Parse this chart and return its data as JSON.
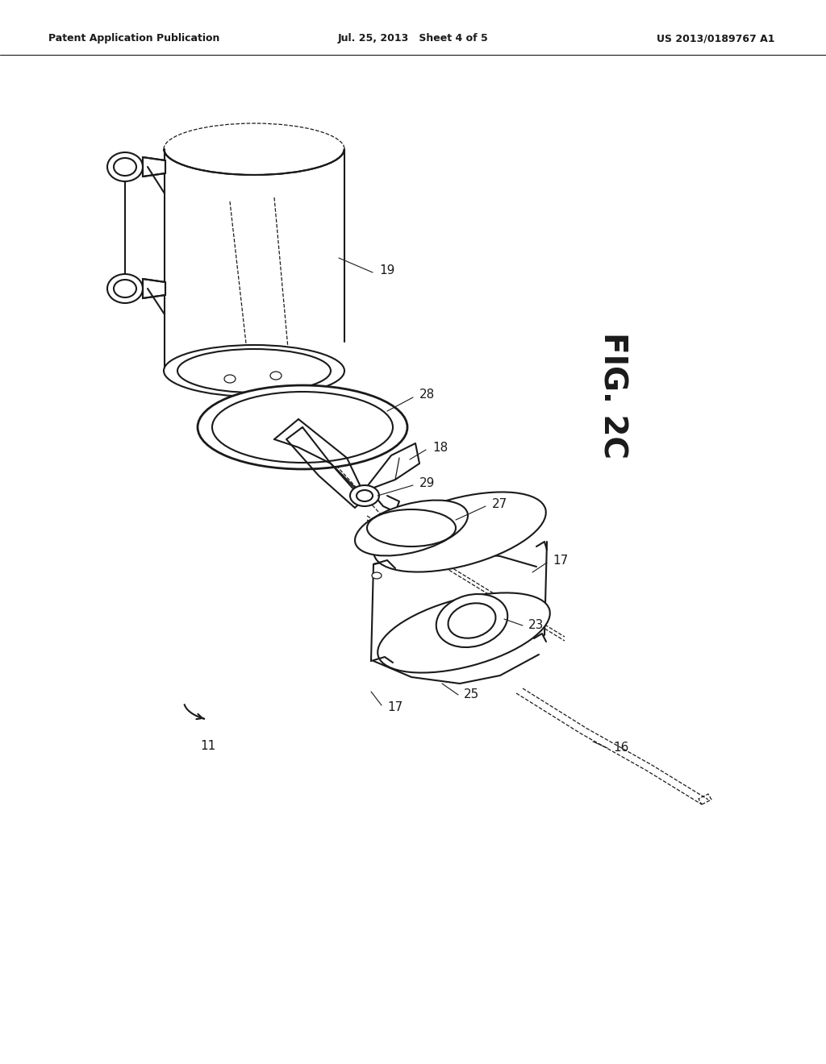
{
  "bg": "#ffffff",
  "header_left": "Patent Application Publication",
  "header_mid": "Jul. 25, 2013   Sheet 4 of 5",
  "header_right": "US 2013/0189767 A1",
  "lw": 1.5,
  "lwt": 0.9,
  "lwk": 2.0,
  "c": "#1a1a1a"
}
